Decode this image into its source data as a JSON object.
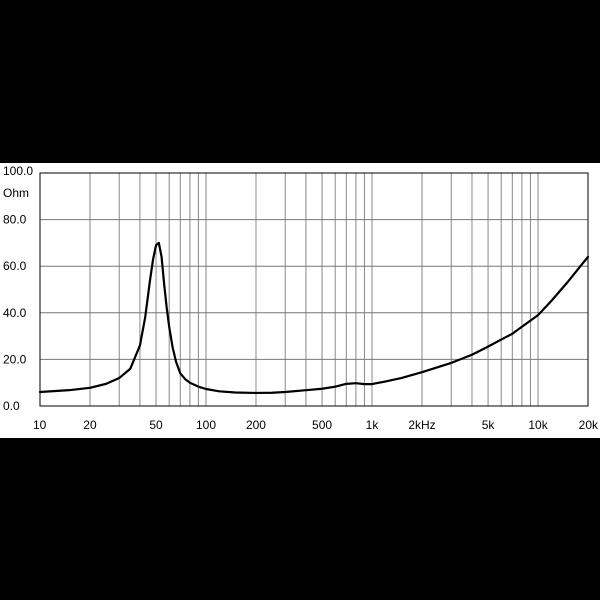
{
  "chart_data": {
    "type": "line",
    "title": "",
    "xlabel": "",
    "ylabel": "Ohm",
    "x_scale": "log",
    "xlim": [
      10,
      20000
    ],
    "ylim": [
      0,
      100
    ],
    "grid": true,
    "x_tick_labels": [
      {
        "value": 10,
        "label": "10"
      },
      {
        "value": 20,
        "label": "20"
      },
      {
        "value": 50,
        "label": "50"
      },
      {
        "value": 100,
        "label": "100"
      },
      {
        "value": 200,
        "label": "200"
      },
      {
        "value": 500,
        "label": "500"
      },
      {
        "value": 1000,
        "label": "1k"
      },
      {
        "value": 2000,
        "label": "2kHz"
      },
      {
        "value": 5000,
        "label": "5k"
      },
      {
        "value": 10000,
        "label": "10k"
      },
      {
        "value": 20000,
        "label": "20k"
      }
    ],
    "y_tick_labels": [
      {
        "value": 0,
        "label": "0.0"
      },
      {
        "value": 20,
        "label": "20.0"
      },
      {
        "value": 40,
        "label": "40.0"
      },
      {
        "value": 60,
        "label": "60.0"
      },
      {
        "value": 80,
        "label": "80.0"
      },
      {
        "value": 100,
        "label": "100.0"
      }
    ],
    "series": [
      {
        "x": [
          10,
          15,
          20,
          25,
          30,
          35,
          40,
          43,
          46,
          48,
          50,
          52,
          54,
          56,
          58,
          60,
          63,
          66,
          70,
          75,
          80,
          90,
          100,
          120,
          150,
          200,
          250,
          300,
          400,
          500,
          600,
          700,
          800,
          900,
          1000,
          1200,
          1500,
          2000,
          3000,
          4000,
          5000,
          6000,
          7000,
          8000,
          10000,
          12000,
          15000,
          18000,
          20000
        ],
        "y": [
          6,
          6.8,
          7.8,
          9.5,
          12,
          16,
          26,
          38,
          54,
          63,
          69,
          70,
          64,
          52,
          42,
          34,
          25,
          19,
          14,
          11.5,
          10,
          8.3,
          7.3,
          6.3,
          5.8,
          5.6,
          5.7,
          6,
          6.8,
          7.4,
          8.3,
          9.5,
          9.8,
          9.4,
          9.4,
          10.5,
          12,
          14.5,
          18.5,
          22,
          25.5,
          28.5,
          31,
          34,
          39,
          45,
          53,
          60,
          64
        ]
      }
    ]
  }
}
